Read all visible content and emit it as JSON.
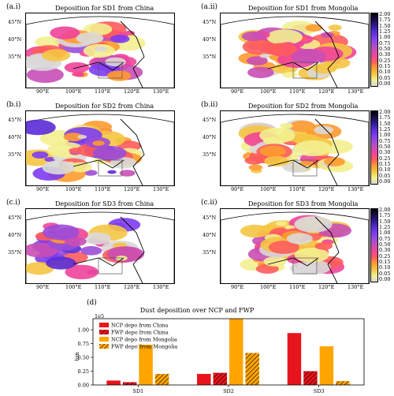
{
  "panels": [
    {
      "label": "(a.i)",
      "title": "Deposition for SD1 from China",
      "intensity": 0.55,
      "region": "china"
    },
    {
      "label": "(a.ii)",
      "title": "Deposition for SD1 from Mongolia",
      "intensity": 0.65,
      "region": "mongolia"
    },
    {
      "label": "(b.i)",
      "title": "Deposition for SD2 from China",
      "intensity": 0.45,
      "region": "china"
    },
    {
      "label": "(b.ii)",
      "title": "Deposition for SD2 from Mongolia",
      "intensity": 0.8,
      "region": "mongolia"
    },
    {
      "label": "(c.i)",
      "title": "Deposition for SD3 from China",
      "intensity": 0.45,
      "region": "china"
    },
    {
      "label": "(c.ii)",
      "title": "Deposition for SD3 from Mongolia",
      "intensity": 0.7,
      "region": "mongolia"
    }
  ],
  "map_axes": {
    "lat_labels": [
      "45°N",
      "40°N",
      "35°N"
    ],
    "lon_labels": [
      "90°E",
      "100°E",
      "110°E",
      "120°E",
      "130°E"
    ]
  },
  "colorbar": {
    "ticks": [
      "2.00",
      "1.75",
      "1.50",
      "1.25",
      "1.00",
      "0.75",
      "0.50",
      "0.30",
      "0.25",
      "0.15",
      "0.10",
      "0.05",
      "0.00"
    ],
    "colors": [
      "#000000",
      "#1a0a4a",
      "#2e1b8e",
      "#5b2bd6",
      "#7c3cf0",
      "#9b4cd8",
      "#c84fb5",
      "#f0449a",
      "#ff5c5c",
      "#ff9b2f",
      "#f5c542",
      "#f3f08f",
      "#d9d9d9"
    ]
  },
  "chart_data": {
    "type": "bar",
    "panel_label": "(d)",
    "title": "Dust deposition over NCP and FWP",
    "ylabel": "ton",
    "offset_text": "1e5",
    "categories": [
      "SD1",
      "SD2",
      "SD3"
    ],
    "ylim": [
      0,
      1.2
    ],
    "yticks": [
      "0.00",
      "0.25",
      "0.50",
      "0.75",
      "1.00"
    ],
    "series": [
      {
        "name": "NCP depo from China",
        "color": "#e8141c",
        "hatch": false,
        "values": [
          0.08,
          0.2,
          0.94
        ]
      },
      {
        "name": "FWP depo from China",
        "color": "#e8141c",
        "hatch": true,
        "values": [
          0.05,
          0.22,
          0.25
        ]
      },
      {
        "name": "NCP depo from Mongolia",
        "color": "#ffa500",
        "hatch": false,
        "values": [
          0.73,
          1.2,
          0.7
        ]
      },
      {
        "name": "FWP depo from Mongolia",
        "color": "#ffa500",
        "hatch": true,
        "values": [
          0.2,
          0.58,
          0.07
        ]
      }
    ]
  }
}
